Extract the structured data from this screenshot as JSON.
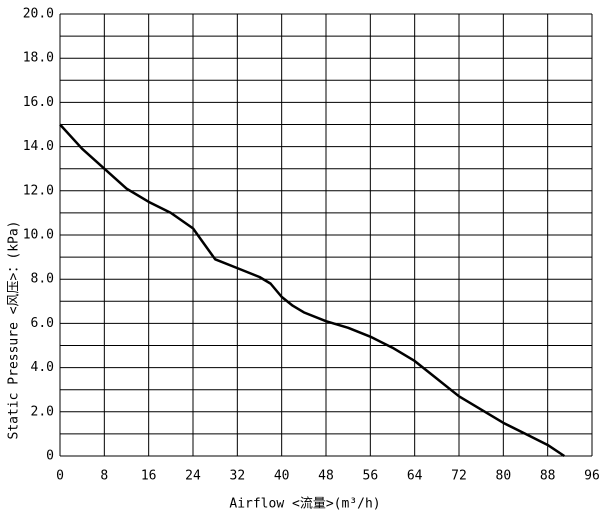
{
  "chart_data": {
    "type": "line",
    "xlabel": "Airflow  <流量>(m³/h)",
    "ylabel": "Static  Pressure  <风压>：(kPa)",
    "x": [
      0,
      4,
      8,
      12,
      16,
      20,
      24,
      26,
      28,
      32,
      36,
      38,
      40,
      42,
      44,
      48,
      52,
      56,
      60,
      64,
      68,
      72,
      76,
      80,
      84,
      88,
      91
    ],
    "series": [
      {
        "color": "#000000",
        "values": [
          15.0,
          13.9,
          13.0,
          12.1,
          11.5,
          11.0,
          10.3,
          9.6,
          8.9,
          8.5,
          8.1,
          7.8,
          7.2,
          6.8,
          6.5,
          6.1,
          5.8,
          5.4,
          4.9,
          4.3,
          3.5,
          2.7,
          2.1,
          1.5,
          1.0,
          0.5,
          0.0
        ]
      }
    ],
    "xlim": [
      0,
      96
    ],
    "ylim": [
      0,
      20
    ],
    "xticks": [
      0,
      8,
      16,
      24,
      32,
      40,
      48,
      56,
      64,
      72,
      80,
      88,
      96
    ],
    "yticks": [
      0,
      {
        "value": 2,
        "label": "2.0"
      },
      {
        "value": 4,
        "label": "4.0"
      },
      {
        "value": 6,
        "label": "6.0"
      },
      {
        "value": 8,
        "label": "8.0"
      },
      {
        "value": 10,
        "label": "10.0"
      },
      {
        "value": 12,
        "label": "12.0"
      },
      {
        "value": 14,
        "label": "14.0"
      },
      {
        "value": 16,
        "label": "16.0"
      },
      {
        "value": 18,
        "label": "18.0"
      },
      {
        "value": 20,
        "label": "20.0"
      }
    ],
    "yminorgrid": [
      1,
      3,
      5,
      7,
      9,
      11,
      13,
      15,
      17,
      19
    ],
    "grid": true
  }
}
